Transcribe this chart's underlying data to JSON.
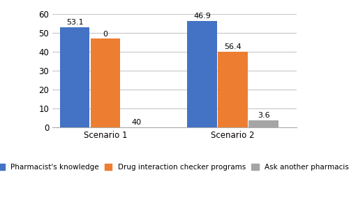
{
  "groups": [
    "Scenario 1",
    "Scenario 2"
  ],
  "series": [
    {
      "label": "Pharmacist's knowledge",
      "color": "#4472C4",
      "values": [
        53.1,
        56.4
      ]
    },
    {
      "label": "Drug interaction checker programs",
      "color": "#ED7D31",
      "values": [
        46.9,
        40.0
      ]
    },
    {
      "label": "Ask another pharmacist",
      "color": "#A5A5A5",
      "values": [
        0.0,
        3.6
      ]
    }
  ],
  "ylim": [
    0,
    60
  ],
  "yticks": [
    0,
    10,
    20,
    30,
    40,
    50,
    60
  ],
  "bar_width": 0.28,
  "group_centers": [
    0.35,
    1.55
  ],
  "xlim": [
    -0.15,
    2.15
  ],
  "label_fontsize": 8.5,
  "tick_fontsize": 8.5,
  "legend_fontsize": 7.5,
  "value_fontsize": 8.0,
  "background_color": "#ffffff",
  "grid_color": "#c8c8c8",
  "value_labels": [
    "53.1",
    "46.9",
    "0",
    "56.4",
    "40",
    "3.6"
  ]
}
